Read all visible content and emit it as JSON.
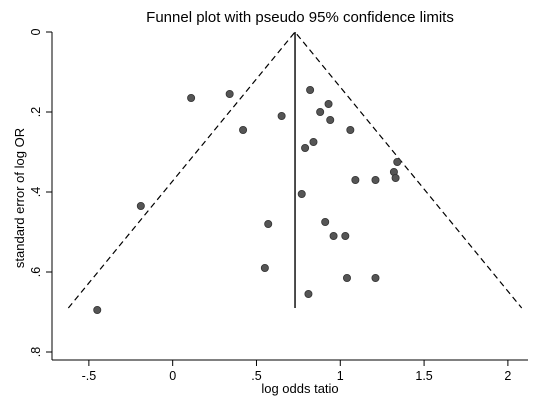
{
  "chart_data": {
    "type": "scatter",
    "title": "Funnel plot with pseudo 95% confidence limits",
    "xlabel": "log odds tatio",
    "ylabel": "standard error of log OR",
    "xlim": [
      -0.72,
      2.12
    ],
    "ylim": [
      0,
      0.82
    ],
    "y_reversed": true,
    "x_ticks": [
      -0.5,
      0,
      0.5,
      1,
      1.5,
      2
    ],
    "x_tick_labels": [
      "-.5",
      "0",
      ".5",
      "1",
      "1.5",
      "2"
    ],
    "y_ticks": [
      0,
      0.2,
      0.4,
      0.6,
      0.8
    ],
    "y_tick_labels": [
      "0",
      ".2",
      ".4",
      ".6",
      ".8"
    ],
    "grid": false,
    "pooled_estimate": 0.73,
    "pseudo_ci_se_max": 0.69,
    "points": [
      {
        "x": -0.45,
        "y": 0.695
      },
      {
        "x": -0.19,
        "y": 0.435
      },
      {
        "x": 0.11,
        "y": 0.165
      },
      {
        "x": 0.34,
        "y": 0.155
      },
      {
        "x": 0.42,
        "y": 0.245
      },
      {
        "x": 0.55,
        "y": 0.59
      },
      {
        "x": 0.57,
        "y": 0.48
      },
      {
        "x": 0.65,
        "y": 0.21
      },
      {
        "x": 0.77,
        "y": 0.405
      },
      {
        "x": 0.79,
        "y": 0.29
      },
      {
        "x": 0.82,
        "y": 0.145
      },
      {
        "x": 0.84,
        "y": 0.275
      },
      {
        "x": 0.81,
        "y": 0.655
      },
      {
        "x": 0.88,
        "y": 0.2
      },
      {
        "x": 0.91,
        "y": 0.475
      },
      {
        "x": 0.93,
        "y": 0.18
      },
      {
        "x": 0.94,
        "y": 0.22
      },
      {
        "x": 0.96,
        "y": 0.51
      },
      {
        "x": 1.03,
        "y": 0.51
      },
      {
        "x": 1.04,
        "y": 0.615
      },
      {
        "x": 1.06,
        "y": 0.245
      },
      {
        "x": 1.09,
        "y": 0.37
      },
      {
        "x": 1.21,
        "y": 0.37
      },
      {
        "x": 1.21,
        "y": 0.615
      },
      {
        "x": 1.32,
        "y": 0.35
      },
      {
        "x": 1.33,
        "y": 0.365
      },
      {
        "x": 1.34,
        "y": 0.325
      }
    ]
  }
}
